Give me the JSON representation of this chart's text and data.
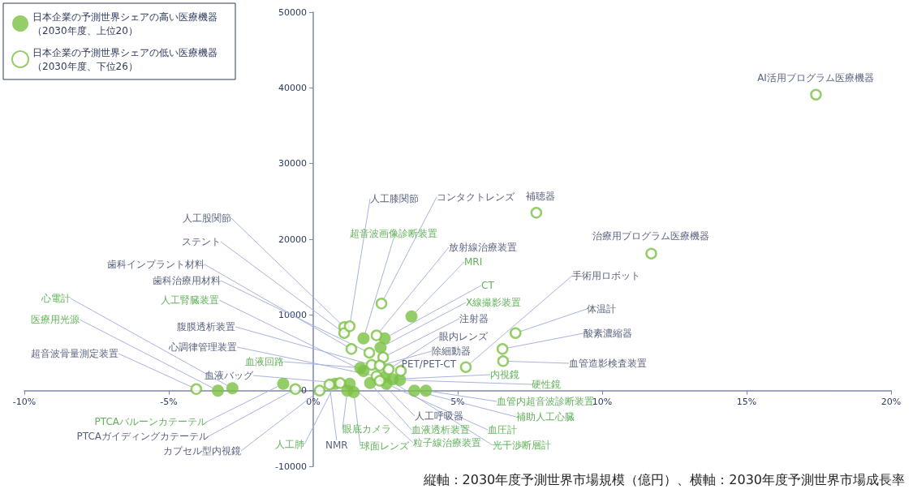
{
  "chart_data": {
    "type": "scatter",
    "marker": "circle",
    "legend": "top left",
    "xlim": [
      -10,
      20
    ],
    "xticks": [
      {
        "value": -10,
        "label": "-10%"
      },
      {
        "value": -5,
        "label": "-5%"
      },
      {
        "value": 0,
        "label": "0%"
      },
      {
        "value": 5,
        "label": "5%"
      },
      {
        "value": 10,
        "label": "10%"
      },
      {
        "value": 15,
        "label": "15%"
      },
      {
        "value": 20,
        "label": "20%"
      }
    ],
    "ylim": [
      -10000,
      50000
    ],
    "yticks": [
      -10000,
      0,
      10000,
      20000,
      30000,
      40000,
      50000
    ],
    "series": [
      {
        "name": "日本企業の予測世界シェアの高い医療機器（2030年度、上位20）",
        "color": "#7ac143",
        "x": [
          -2.8,
          -3.3,
          -1.04,
          0.76,
          1.18,
          1.4,
          1.63,
          1.74,
          1.74,
          3.4,
          2.47,
          2.33,
          2.75,
          3.0,
          3.9,
          3.5,
          2.53,
          2.47,
          1.97,
          1.26
        ],
        "values": [
          300,
          0,
          900,
          900,
          0,
          -200,
          3000,
          2600,
          6900,
          9800,
          6900,
          5700,
          1500,
          1400,
          0,
          0,
          900,
          1800,
          1000,
          900
        ],
        "value_labels": [
          "心電計",
          "医療用光源",
          "PTCAバルーンカテーテル",
          "人工肺",
          "眼底カメラ",
          "球面レンズ",
          "血液回路",
          "人工腎臓装置",
          "超音波画像診断装置",
          "MRI",
          "CT",
          "X線撮影装置",
          "内視鏡",
          "硬性鏡",
          "血管内超音波診断装置",
          "補助人工心臓",
          "血圧計",
          "光干渉断層計",
          "血液透析装置",
          "粒子線治療装置"
        ]
      },
      {
        "name": "日本企業の予測世界シェアの低い医療機器（2030年度、下位26）",
        "color": "#7ac143",
        "x": [
          1.07,
          1.07,
          1.26,
          1.32,
          1.94,
          2.02,
          2.19,
          -4.05,
          0.93,
          -0.62,
          0.22,
          0.56,
          2.36,
          7.72,
          2.19,
          2.42,
          2.61,
          2.3,
          3.03,
          2.3,
          17.4,
          11.7,
          5.28,
          7.0,
          6.55,
          6.57
        ],
        "values": [
          8400,
          7600,
          8500,
          5500,
          5000,
          3400,
          1900,
          200,
          1000,
          200,
          0,
          800,
          11500,
          23500,
          7300,
          4400,
          2800,
          3300,
          2600,
          1300,
          39100,
          18100,
          3100,
          7600,
          5500,
          3900
        ],
        "value_labels": [
          "人工股関節",
          "ステント",
          "人工膝関節",
          "歯科インプラント材料",
          "歯科治療用材料",
          "腹膜透析装置",
          "心調律管理装置",
          "超音波骨量測定装置",
          "血液バッグ",
          "PTCAガイディングカテーテル",
          "カプセル型内視鏡",
          "NMR",
          "コンタクトレンズ",
          "補聴器",
          "放射線治療装置",
          "注射器",
          "眼内レンズ",
          "除細動器",
          "PET/PET-CT",
          "人工呼吸器",
          "AI活用プログラム医療機器",
          "治療用プログラム医療機器",
          "手術用ロボット",
          "体温計",
          "酸素濃縮器",
          "血管造影検査装置"
        ]
      }
    ],
    "annotations": [
      "縦軸：2030年度予測世界市場規模（億円）、横軸：2030年度予測世界市場成長率"
    ]
  }
}
